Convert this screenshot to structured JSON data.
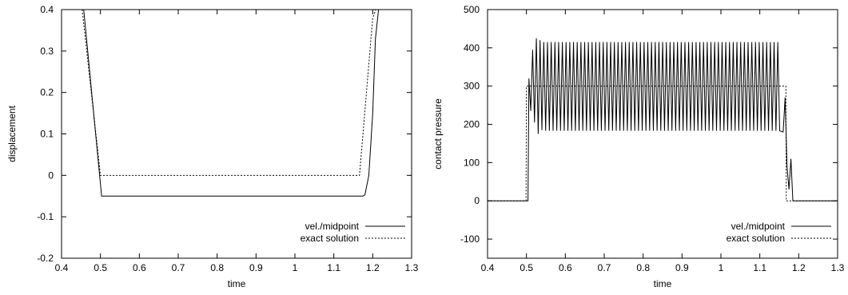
{
  "chart_data": [
    {
      "type": "line",
      "xlabel": "time",
      "ylabel": "displacement",
      "xlim": [
        0.4,
        1.3
      ],
      "ylim": [
        -0.2,
        0.4
      ],
      "xticks": [
        0.4,
        0.5,
        0.6,
        0.7,
        0.8,
        0.9,
        1,
        1.1,
        1.2,
        1.3
      ],
      "xtick_labels": [
        "0.4",
        "0.5",
        "0.6",
        "0.7",
        "0.8",
        "0.9",
        "1",
        "1.1",
        "1.2",
        "1.3"
      ],
      "yticks": [
        -0.2,
        -0.1,
        0,
        0.1,
        0.2,
        0.3,
        0.4
      ],
      "ytick_labels": [
        "-0.2",
        "-0.1",
        "0",
        "0.1",
        "0.2",
        "0.3",
        "0.4"
      ],
      "grid": false,
      "legend_position": "bottom-right",
      "series": [
        {
          "name": "vel./midpoint",
          "style": "solid",
          "color": "#000000",
          "x": [
            0.457,
            0.503,
            1.175,
            1.18,
            1.19,
            1.2,
            1.207,
            1.215
          ],
          "y": [
            0.4,
            -0.05,
            -0.05,
            -0.047,
            0.0,
            0.15,
            0.33,
            0.4
          ]
        },
        {
          "name": "exact solution",
          "style": "dotted",
          "color": "#000000",
          "x": [
            0.453,
            0.5,
            1.166,
            1.2,
            1.208
          ],
          "y": [
            0.4,
            0.0,
            0.0,
            0.38,
            0.4
          ]
        }
      ]
    },
    {
      "type": "line",
      "xlabel": "time",
      "ylabel": "contact pressure",
      "xlim": [
        0.4,
        1.3
      ],
      "ylim": [
        -150,
        500
      ],
      "xticks": [
        0.4,
        0.5,
        0.6,
        0.7,
        0.8,
        0.9,
        1,
        1.1,
        1.2,
        1.3
      ],
      "xtick_labels": [
        "0.4",
        "0.5",
        "0.6",
        "0.7",
        "0.8",
        "0.9",
        "1",
        "1.1",
        "1.2",
        "1.3"
      ],
      "yticks": [
        -100,
        0,
        100,
        200,
        300,
        400,
        500
      ],
      "ytick_labels": [
        "-100",
        "0",
        "100",
        "200",
        "300",
        "400",
        "500"
      ],
      "grid": false,
      "legend_position": "bottom-right",
      "series": [
        {
          "name": "vel./midpoint",
          "style": "solid",
          "color": "#000000",
          "oscillation": {
            "x_start": 0.504,
            "x_end": 1.16,
            "period": 0.00955,
            "high": 415,
            "low": 183,
            "first_peaks": [
              320,
              395,
              425,
              420
            ],
            "first_troughs": [
              235,
              205,
              175,
              185
            ]
          },
          "x": [
            0.4,
            0.504,
            1.16,
            1.165,
            1.17,
            1.175,
            1.18,
            1.185,
            1.3
          ],
          "y": [
            0,
            0,
            180,
            270,
            90,
            30,
            110,
            0,
            0
          ]
        },
        {
          "name": "exact solution",
          "style": "dotted",
          "color": "#000000",
          "x": [
            0.4,
            0.499,
            0.5,
            1.167,
            1.168,
            1.3
          ],
          "y": [
            0,
            0,
            300,
            300,
            0,
            0
          ]
        }
      ]
    }
  ]
}
